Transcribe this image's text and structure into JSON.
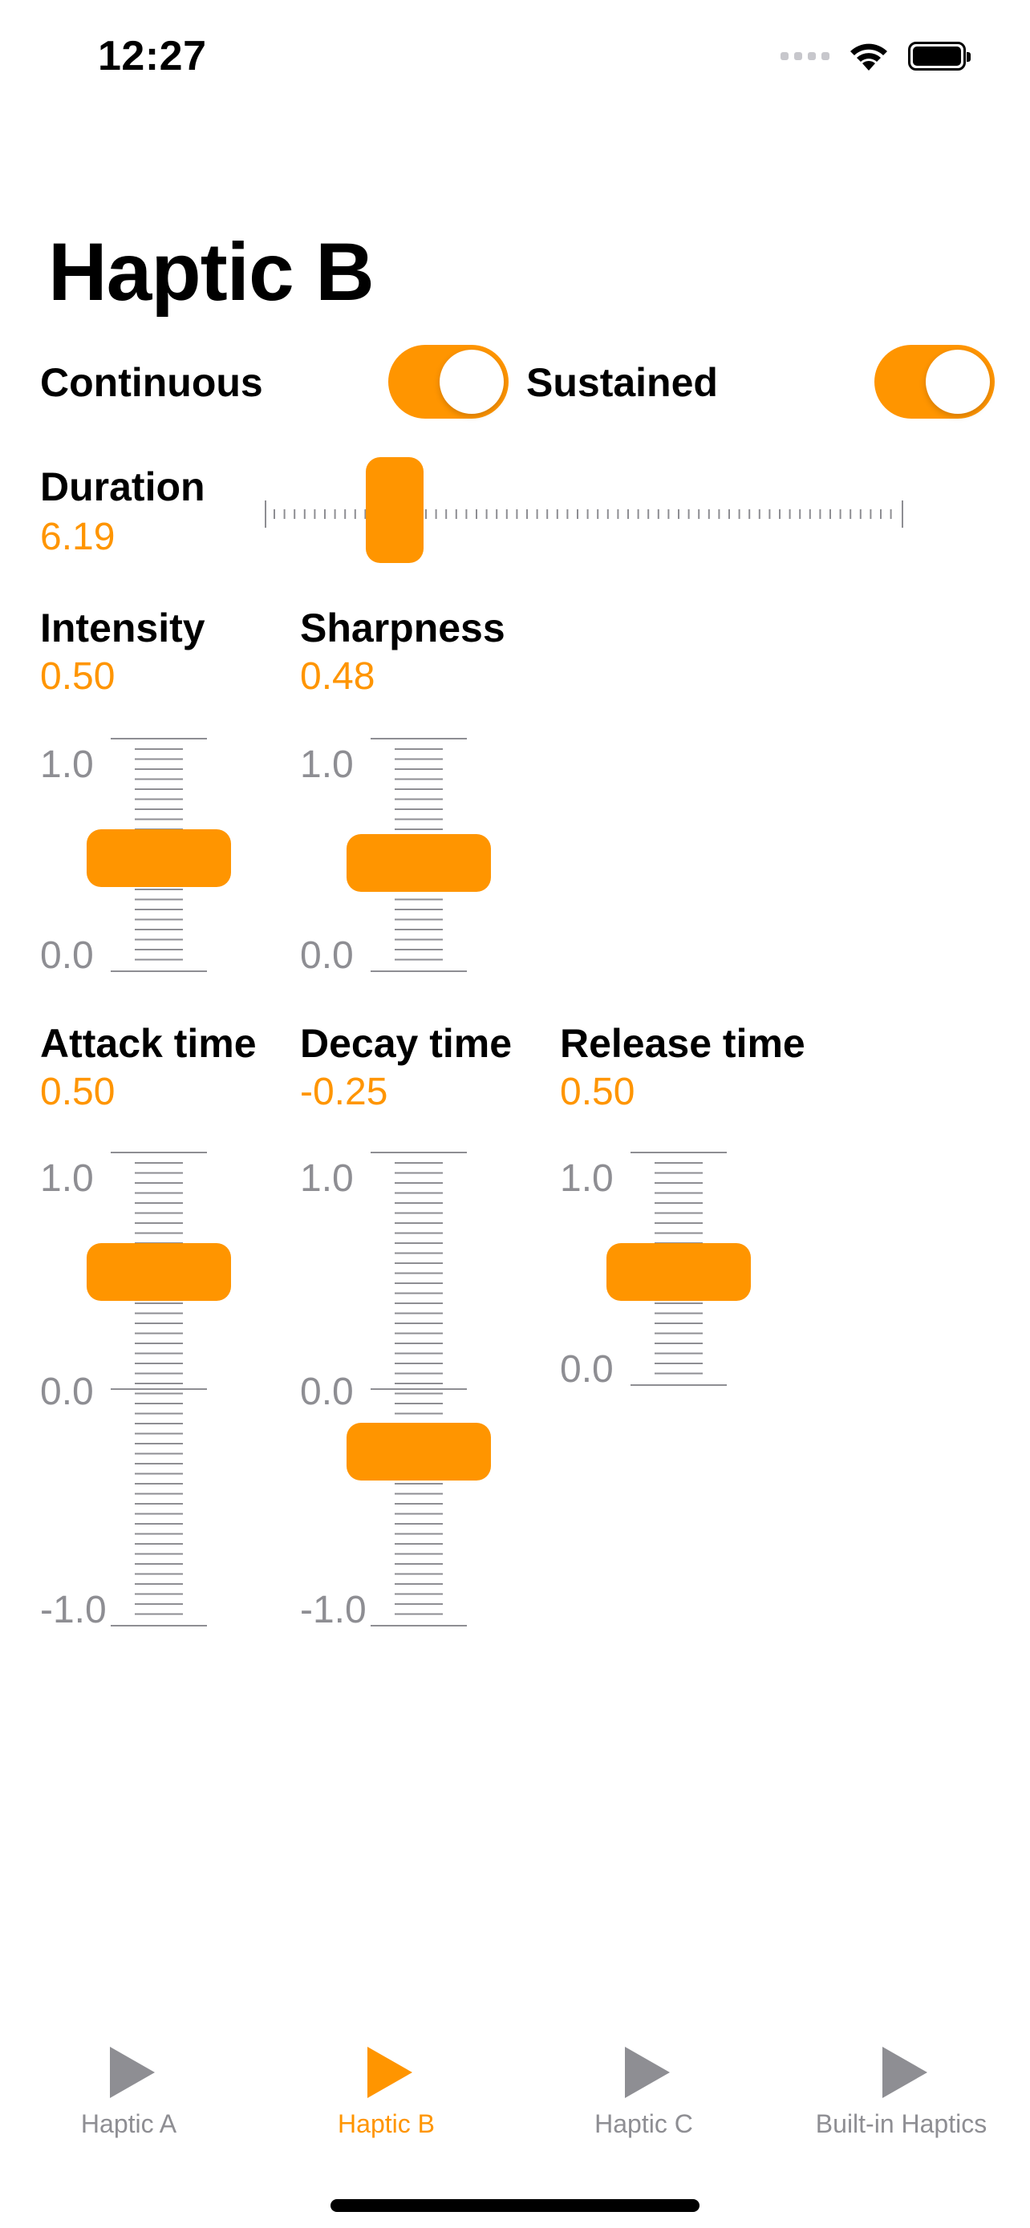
{
  "status_bar": {
    "time": "12:27",
    "icons": [
      "cellular-signal-icon",
      "wifi-icon",
      "battery-icon"
    ]
  },
  "page": {
    "title": "Haptic B"
  },
  "toggles": [
    {
      "label": "Continuous",
      "on": true
    },
    {
      "label": "Sustained",
      "on": true
    }
  ],
  "duration": {
    "label": "Duration",
    "value": "6.19"
  },
  "intensity": {
    "label": "Intensity",
    "value": "0.50",
    "axis_max": "1.0",
    "axis_min": "0.0"
  },
  "sharpness": {
    "label": "Sharpness",
    "value": "0.48",
    "axis_max": "1.0",
    "axis_min": "0.0"
  },
  "attack": {
    "label": "Attack time",
    "value": "0.50",
    "axis_max": "1.0",
    "axis_mid": "0.0",
    "axis_min": "-1.0"
  },
  "decay": {
    "label": "Decay time",
    "value": "-0.25",
    "axis_max": "1.0",
    "axis_mid": "0.0",
    "axis_min": "-1.0"
  },
  "release": {
    "label": "Release time",
    "value": "0.50",
    "axis_max": "1.0",
    "axis_min": "0.0"
  },
  "tabs": [
    {
      "label": "Haptic A",
      "icon": "play-icon",
      "active": false
    },
    {
      "label": "Haptic B",
      "icon": "play-icon",
      "active": true
    },
    {
      "label": "Haptic C",
      "icon": "play-icon",
      "active": false
    },
    {
      "label": "Built-in Haptics",
      "icon": "play-icon",
      "active": false
    }
  ],
  "colors": {
    "accent": "#FF9500",
    "inactive": "#8E8E93",
    "tick": "#8E8E93"
  }
}
